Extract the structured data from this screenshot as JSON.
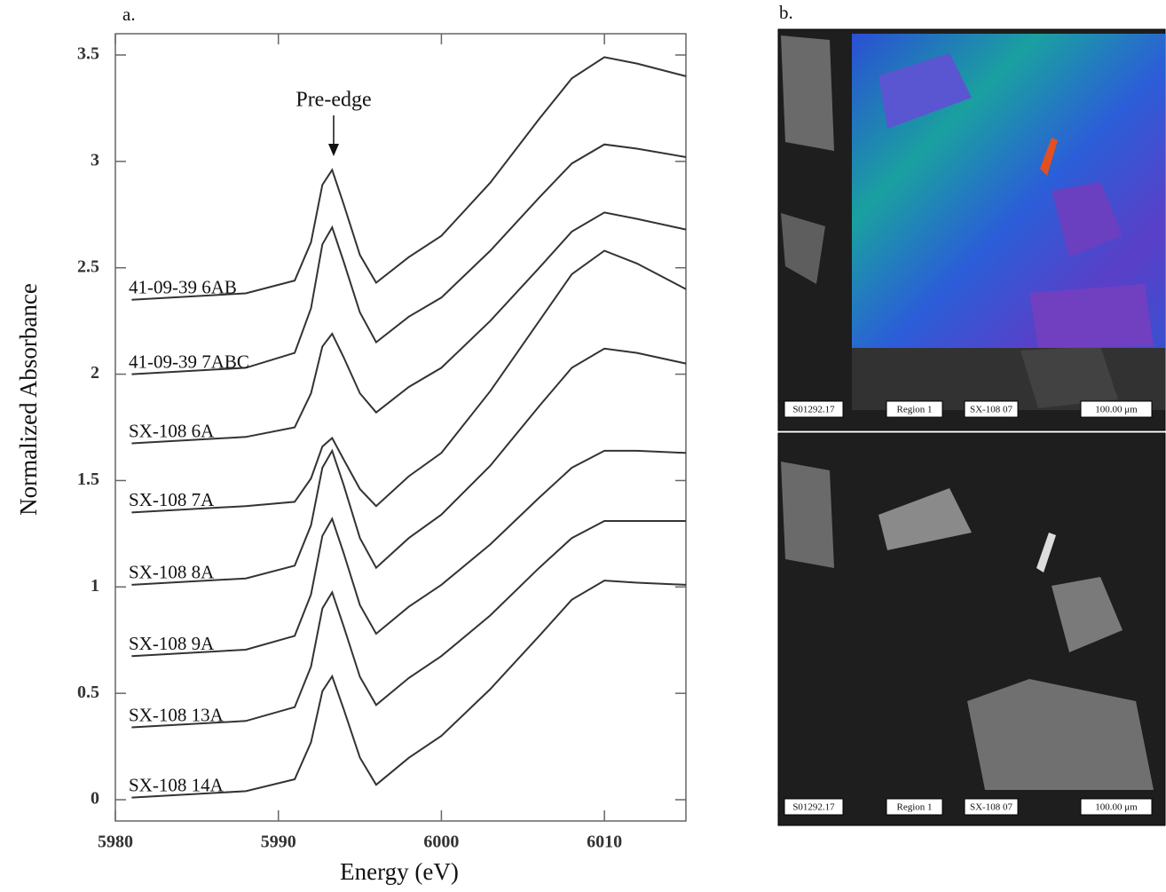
{
  "chart_data": {
    "type": "line",
    "panel_label": "a.",
    "annotations": [
      "Pre-edge"
    ],
    "x_label": "Energy (eV)",
    "y_label": "Normalized Absorbance",
    "x": [
      5981,
      5988,
      5991,
      5992,
      5992.7,
      5993.3,
      5994,
      5995,
      5996,
      5998,
      6000,
      6003,
      6006,
      6008,
      6010,
      6012,
      6015
    ],
    "series": [
      {
        "name": "41-09-39 6AB",
        "color": "#333333",
        "values": [
          2.35,
          2.38,
          2.44,
          2.62,
          2.89,
          2.96,
          2.8,
          2.56,
          2.43,
          2.55,
          2.65,
          2.9,
          3.2,
          3.39,
          3.49,
          3.46,
          3.4
        ]
      },
      {
        "name": "41-09-39 7ABC",
        "color": "#333333",
        "values": [
          2.0,
          2.03,
          2.1,
          2.31,
          2.61,
          2.69,
          2.53,
          2.29,
          2.15,
          2.27,
          2.36,
          2.58,
          2.83,
          2.99,
          3.08,
          3.06,
          3.02
        ]
      },
      {
        "name": "SX-108 6A",
        "color": "#333333",
        "values": [
          1.675,
          1.705,
          1.75,
          1.91,
          2.13,
          2.19,
          2.08,
          1.91,
          1.82,
          1.94,
          2.03,
          2.25,
          2.5,
          2.67,
          2.76,
          2.73,
          2.68
        ]
      },
      {
        "name": "SX-108 7A",
        "color": "#333333",
        "values": [
          1.35,
          1.38,
          1.4,
          1.51,
          1.66,
          1.7,
          1.6,
          1.46,
          1.38,
          1.52,
          1.63,
          1.92,
          2.25,
          2.47,
          2.58,
          2.52,
          2.4
        ]
      },
      {
        "name": "SX-108 8A",
        "color": "#333333",
        "values": [
          1.01,
          1.04,
          1.1,
          1.29,
          1.56,
          1.64,
          1.48,
          1.23,
          1.09,
          1.23,
          1.34,
          1.57,
          1.85,
          2.03,
          2.12,
          2.1,
          2.05
        ]
      },
      {
        "name": "SX-108 9A",
        "color": "#333333",
        "values": [
          0.675,
          0.705,
          0.77,
          0.965,
          1.24,
          1.32,
          1.16,
          0.915,
          0.78,
          0.907,
          1.01,
          1.2,
          1.42,
          1.56,
          1.64,
          1.64,
          1.63
        ]
      },
      {
        "name": "SX-108 13A",
        "color": "#333333",
        "values": [
          0.34,
          0.37,
          0.435,
          0.626,
          0.899,
          0.975,
          0.816,
          0.578,
          0.445,
          0.572,
          0.675,
          0.866,
          1.09,
          1.23,
          1.31,
          1.31,
          1.31
        ]
      },
      {
        "name": "SX-108 14A",
        "color": "#333333",
        "values": [
          0.01,
          0.04,
          0.096,
          0.27,
          0.51,
          0.58,
          0.427,
          0.198,
          0.07,
          0.197,
          0.3,
          0.52,
          0.77,
          0.94,
          1.03,
          1.02,
          1.01
        ]
      }
    ],
    "xlim": [
      5980,
      6015
    ],
    "xticks": [
      5980,
      5990,
      6000,
      6010
    ],
    "ylim": [
      -0.1,
      3.6
    ],
    "yticks": [
      0,
      0.5,
      1,
      1.5,
      2,
      2.5,
      3,
      3.5
    ]
  },
  "panel_b": {
    "label": "b.",
    "images": [
      {
        "tags": [
          "S01292.17",
          "Region 1",
          "SX-108 07",
          "100.00 μm"
        ]
      },
      {
        "tags": [
          "S01292.17",
          "Region 1",
          "SX-108 07",
          "100.00 μm"
        ]
      }
    ]
  }
}
